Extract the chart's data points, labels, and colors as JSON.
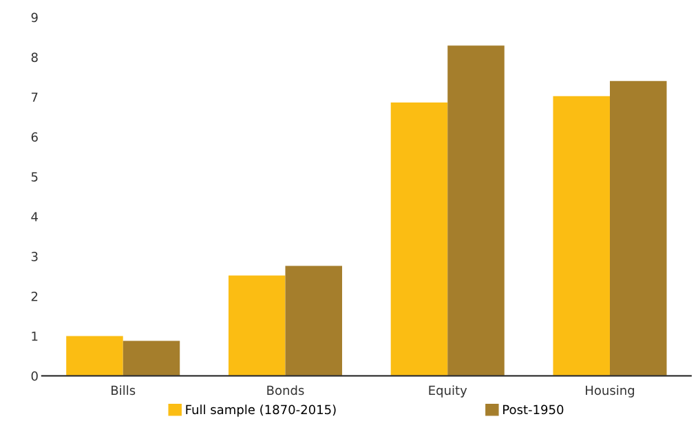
{
  "chart_data": {
    "type": "bar",
    "categories": [
      "Bills",
      "Bonds",
      "Equity",
      "Housing"
    ],
    "series": [
      {
        "name": "Full sample (1870-2015)",
        "color": "#fbbd13",
        "values": [
          1.0,
          2.52,
          6.86,
          7.02
        ]
      },
      {
        "name": "Post-1950",
        "color": "#a57e2c",
        "values": [
          0.88,
          2.76,
          8.29,
          7.4
        ]
      }
    ],
    "ylim": [
      0,
      9
    ],
    "yticks": [
      0,
      1,
      2,
      3,
      4,
      5,
      6,
      7,
      8,
      9
    ],
    "grid": false,
    "legend": "bottom"
  }
}
